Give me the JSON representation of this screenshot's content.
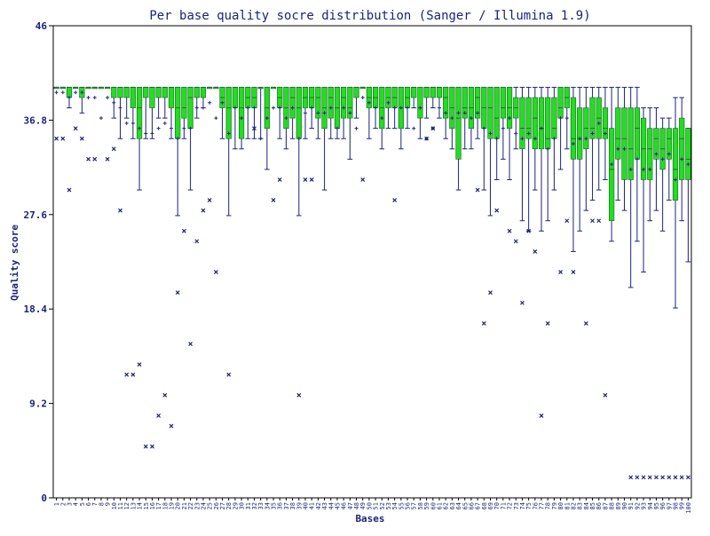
{
  "chart_data": {
    "type": "box",
    "title": "Per base quality socre distribution (Sanger / Illumina 1.9)",
    "xlabel": "Bases",
    "ylabel": "Quality score",
    "ylim": [
      0,
      46
    ],
    "y_ticks": [
      "0",
      "9.2",
      "18.4",
      "27.6",
      "36.8",
      "46"
    ],
    "x_tick_labels": [
      "1",
      "2",
      "3",
      "4",
      "5",
      "6",
      "7",
      "8",
      "9",
      "10",
      "11",
      "12",
      "13",
      "14",
      "15",
      "16",
      "17",
      "18",
      "19",
      "20",
      "21",
      "22",
      "23",
      "24",
      "25",
      "26",
      "27",
      "28",
      "29",
      "30",
      "31",
      "32",
      "33",
      "34",
      "35",
      "36",
      "37",
      "38",
      "39",
      "40",
      "41",
      "42",
      "43",
      "44",
      "45",
      "46",
      "47",
      "48",
      "49",
      "50",
      "51",
      "52",
      "53",
      "54",
      "55",
      "56",
      "57",
      "58",
      "59",
      "60",
      "61",
      "62",
      "63",
      "64",
      "65",
      "66",
      "67",
      "68",
      "69",
      "70",
      "71",
      "72",
      "73",
      "74",
      "75",
      "76",
      "77",
      "78",
      "79",
      "80",
      "81",
      "82",
      "83",
      "84",
      "85",
      "86",
      "87",
      "88",
      "89",
      "90",
      "91",
      "92",
      "93",
      "94",
      "95",
      "96",
      "97",
      "98",
      "99",
      "100"
    ],
    "grid": false,
    "colors": {
      "box_fill": "#22dd22",
      "whisker": "#1a237e",
      "text": "#1a237e",
      "axis": "#000000"
    },
    "boxes": [
      {
        "base": 1,
        "q1": 40,
        "median": 40,
        "q3": 40,
        "low": 40,
        "high": 40,
        "mean": 39.5
      },
      {
        "base": 2,
        "q1": 40,
        "median": 40,
        "q3": 40,
        "low": 40,
        "high": 40,
        "mean": 39.5
      },
      {
        "base": 3,
        "q1": 39,
        "median": 40,
        "q3": 40,
        "low": 38,
        "high": 40,
        "mean": 39
      },
      {
        "base": 4,
        "q1": 40,
        "median": 40,
        "q3": 40,
        "low": 40,
        "high": 40,
        "mean": 39.5
      },
      {
        "base": 5,
        "q1": 39,
        "median": 40,
        "q3": 40,
        "low": 37.5,
        "high": 40,
        "mean": 39.5
      },
      {
        "base": 6,
        "q1": 40,
        "median": 40,
        "q3": 40,
        "low": 40,
        "high": 40,
        "mean": 39
      },
      {
        "base": 7,
        "q1": 40,
        "median": 40,
        "q3": 40,
        "low": 40,
        "high": 40,
        "mean": 39
      },
      {
        "base": 8,
        "q1": 40,
        "median": 40,
        "q3": 40,
        "low": 40,
        "high": 40,
        "mean": 37
      },
      {
        "base": 9,
        "q1": 40,
        "median": 40,
        "q3": 40,
        "low": 40,
        "high": 40,
        "mean": 39
      },
      {
        "base": 10,
        "q1": 39,
        "median": 40,
        "q3": 40,
        "low": 37,
        "high": 40,
        "mean": 38.5
      },
      {
        "base": 11,
        "q1": 39,
        "median": 40,
        "q3": 40,
        "low": 35,
        "high": 40,
        "mean": 38
      },
      {
        "base": 12,
        "q1": 39,
        "median": 40,
        "q3": 40,
        "low": 37,
        "high": 40,
        "mean": 36.5
      },
      {
        "base": 13,
        "q1": 38,
        "median": 40,
        "q3": 40,
        "low": 35,
        "high": 40,
        "mean": 36.5
      },
      {
        "base": 14,
        "q1": 35,
        "median": 38,
        "q3": 40,
        "low": 30,
        "high": 40,
        "mean": 36
      },
      {
        "base": 15,
        "q1": 39,
        "median": 40,
        "q3": 40,
        "low": 35,
        "high": 40,
        "mean": 35.5
      },
      {
        "base": 16,
        "q1": 38,
        "median": 40,
        "q3": 40,
        "low": 35,
        "high": 40,
        "mean": 35.5
      },
      {
        "base": 17,
        "q1": 39,
        "median": 40,
        "q3": 40,
        "low": 37,
        "high": 40,
        "mean": 36
      },
      {
        "base": 18,
        "q1": 39,
        "median": 40,
        "q3": 40,
        "low": 37,
        "high": 40,
        "mean": 36.5
      },
      {
        "base": 19,
        "q1": 38,
        "median": 40,
        "q3": 40,
        "low": 35,
        "high": 40,
        "mean": 36
      },
      {
        "base": 20,
        "q1": 35,
        "median": 38,
        "q3": 40,
        "low": 27.5,
        "high": 40,
        "mean": 35
      },
      {
        "base": 21,
        "q1": 37,
        "median": 38,
        "q3": 40,
        "low": 35,
        "high": 40,
        "mean": 36
      },
      {
        "base": 22,
        "q1": 36,
        "median": 39,
        "q3": 40,
        "low": 30,
        "high": 40,
        "mean": 36
      },
      {
        "base": 23,
        "q1": 39,
        "median": 40,
        "q3": 40,
        "low": 37,
        "high": 40,
        "mean": 38
      },
      {
        "base": 24,
        "q1": 39,
        "median": 40,
        "q3": 40,
        "low": 38,
        "high": 40,
        "mean": 38
      },
      {
        "base": 25,
        "q1": 40,
        "median": 40,
        "q3": 40,
        "low": 40,
        "high": 40,
        "mean": 38.5
      },
      {
        "base": 26,
        "q1": 40,
        "median": 40,
        "q3": 40,
        "low": 40,
        "high": 40,
        "mean": 37
      },
      {
        "base": 27,
        "q1": 38,
        "median": 39,
        "q3": 40,
        "low": 35,
        "high": 40,
        "mean": 38.5
      },
      {
        "base": 28,
        "q1": 35,
        "median": 38,
        "q3": 40,
        "low": 27.5,
        "high": 40,
        "mean": 35.5
      },
      {
        "base": 29,
        "q1": 38,
        "median": 40,
        "q3": 40,
        "low": 34,
        "high": 40,
        "mean": 38
      },
      {
        "base": 30,
        "q1": 35,
        "median": 38,
        "q3": 40,
        "low": 34,
        "high": 40,
        "mean": 37
      },
      {
        "base": 31,
        "q1": 38,
        "median": 39,
        "q3": 40,
        "low": 35,
        "high": 40,
        "mean": 38
      },
      {
        "base": 32,
        "q1": 38,
        "median": 39,
        "q3": 40,
        "low": 35,
        "high": 40,
        "mean": 38
      },
      {
        "base": 33,
        "q1": 40,
        "median": 40,
        "q3": 40,
        "low": 35,
        "high": 40,
        "mean": 35
      },
      {
        "base": 34,
        "q1": 36,
        "median": 38,
        "q3": 40,
        "low": 32,
        "high": 40,
        "mean": 37
      },
      {
        "base": 35,
        "q1": 40,
        "median": 40,
        "q3": 40,
        "low": 40,
        "high": 40,
        "mean": 38
      },
      {
        "base": 36,
        "q1": 38,
        "median": 39,
        "q3": 40,
        "low": 35,
        "high": 40,
        "mean": 38
      },
      {
        "base": 37,
        "q1": 36,
        "median": 38,
        "q3": 40,
        "low": 34,
        "high": 40,
        "mean": 37
      },
      {
        "base": 38,
        "q1": 37,
        "median": 39,
        "q3": 40,
        "low": 35,
        "high": 40,
        "mean": 38
      },
      {
        "base": 39,
        "q1": 35,
        "median": 38,
        "q3": 40,
        "low": 27.5,
        "high": 40,
        "mean": 35
      },
      {
        "base": 40,
        "q1": 38,
        "median": 39,
        "q3": 40,
        "low": 35,
        "high": 40,
        "mean": 37.5
      },
      {
        "base": 41,
        "q1": 38,
        "median": 39,
        "q3": 40,
        "low": 36,
        "high": 40,
        "mean": 38
      },
      {
        "base": 42,
        "q1": 37,
        "median": 39,
        "q3": 40,
        "low": 35,
        "high": 40,
        "mean": 37.5
      },
      {
        "base": 43,
        "q1": 36,
        "median": 38,
        "q3": 40,
        "low": 30,
        "high": 40,
        "mean": 37.5
      },
      {
        "base": 44,
        "q1": 37,
        "median": 39,
        "q3": 40,
        "low": 35,
        "high": 40,
        "mean": 38
      },
      {
        "base": 45,
        "q1": 36,
        "median": 38,
        "q3": 40,
        "low": 35,
        "high": 40,
        "mean": 36
      },
      {
        "base": 46,
        "q1": 37,
        "median": 39,
        "q3": 40,
        "low": 35,
        "high": 40,
        "mean": 38
      },
      {
        "base": 47,
        "q1": 37,
        "median": 38,
        "q3": 40,
        "low": 33,
        "high": 40,
        "mean": 37.5
      },
      {
        "base": 48,
        "q1": 39,
        "median": 40,
        "q3": 40,
        "low": 37,
        "high": 40,
        "mean": 36
      },
      {
        "base": 49,
        "q1": 40,
        "median": 40,
        "q3": 40,
        "low": 40,
        "high": 40,
        "mean": 39
      },
      {
        "base": 50,
        "q1": 38,
        "median": 39,
        "q3": 40,
        "low": 35,
        "high": 40,
        "mean": 38.5
      },
      {
        "base": 51,
        "q1": 38,
        "median": 39,
        "q3": 40,
        "low": 36,
        "high": 40,
        "mean": 38
      },
      {
        "base": 52,
        "q1": 36,
        "median": 38,
        "q3": 40,
        "low": 34,
        "high": 40,
        "mean": 37
      },
      {
        "base": 53,
        "q1": 38,
        "median": 39,
        "q3": 40,
        "low": 36,
        "high": 40,
        "mean": 38.5
      },
      {
        "base": 54,
        "q1": 38,
        "median": 39,
        "q3": 40,
        "low": 36,
        "high": 40,
        "mean": 38
      },
      {
        "base": 55,
        "q1": 36,
        "median": 38,
        "q3": 40,
        "low": 34,
        "high": 40,
        "mean": 38
      },
      {
        "base": 56,
        "q1": 38,
        "median": 39,
        "q3": 40,
        "low": 36,
        "high": 40,
        "mean": 38
      },
      {
        "base": 57,
        "q1": 39,
        "median": 40,
        "q3": 40,
        "low": 38,
        "high": 40,
        "mean": 36
      },
      {
        "base": 58,
        "q1": 37,
        "median": 38,
        "q3": 40,
        "low": 35,
        "high": 40,
        "mean": 38
      },
      {
        "base": 59,
        "q1": 39,
        "median": 40,
        "q3": 40,
        "low": 37,
        "high": 40,
        "mean": 35
      },
      {
        "base": 60,
        "q1": 39,
        "median": 40,
        "q3": 40,
        "low": 38,
        "high": 40,
        "mean": 36
      },
      {
        "base": 61,
        "q1": 39,
        "median": 40,
        "q3": 40,
        "low": 37,
        "high": 40,
        "mean": 38
      },
      {
        "base": 62,
        "q1": 37,
        "median": 39,
        "q3": 40,
        "low": 35,
        "high": 40,
        "mean": 37.5
      },
      {
        "base": 63,
        "q1": 36,
        "median": 38,
        "q3": 40,
        "low": 34,
        "high": 40,
        "mean": 37
      },
      {
        "base": 64,
        "q1": 33,
        "median": 37,
        "q3": 40,
        "low": 30,
        "high": 40,
        "mean": 37.5
      },
      {
        "base": 65,
        "q1": 37,
        "median": 38,
        "q3": 40,
        "low": 34,
        "high": 40,
        "mean": 37.5
      },
      {
        "base": 66,
        "q1": 36,
        "median": 38,
        "q3": 40,
        "low": 34,
        "high": 40,
        "mean": 37
      },
      {
        "base": 67,
        "q1": 37,
        "median": 39,
        "q3": 40,
        "low": 35,
        "high": 40,
        "mean": 37.5
      },
      {
        "base": 68,
        "q1": 36,
        "median": 38,
        "q3": 40,
        "low": 30,
        "high": 40,
        "mean": 36
      },
      {
        "base": 69,
        "q1": 35,
        "median": 38,
        "q3": 40,
        "low": 27.5,
        "high": 40,
        "mean": 35.5
      },
      {
        "base": 70,
        "q1": 35,
        "median": 37,
        "q3": 40,
        "low": 31,
        "high": 40,
        "mean": 35
      },
      {
        "base": 71,
        "q1": 37,
        "median": 38,
        "q3": 40,
        "low": 33,
        "high": 40,
        "mean": 36
      },
      {
        "base": 72,
        "q1": 36,
        "median": 38,
        "q3": 40,
        "low": 31,
        "high": 40,
        "mean": 37
      },
      {
        "base": 73,
        "q1": 37,
        "median": 38,
        "q3": 39,
        "low": 34,
        "high": 40,
        "mean": 35.5
      },
      {
        "base": 74,
        "q1": 34,
        "median": 36,
        "q3": 39,
        "low": 27,
        "high": 40,
        "mean": 35
      },
      {
        "base": 75,
        "q1": 35,
        "median": 36,
        "q3": 39,
        "low": 26,
        "high": 40,
        "mean": 35.5
      },
      {
        "base": 76,
        "q1": 34,
        "median": 37,
        "q3": 39,
        "low": 30,
        "high": 40,
        "mean": 35
      },
      {
        "base": 77,
        "q1": 34,
        "median": 36,
        "q3": 39,
        "low": 26,
        "high": 40,
        "mean": 36
      },
      {
        "base": 78,
        "q1": 34,
        "median": 35,
        "q3": 39,
        "low": 27,
        "high": 40,
        "mean": 34
      },
      {
        "base": 79,
        "q1": 35,
        "median": 36,
        "q3": 39,
        "low": 30,
        "high": 40,
        "mean": 35
      },
      {
        "base": 80,
        "q1": 37,
        "median": 38,
        "q3": 40,
        "low": 32,
        "high": 40,
        "mean": 37
      },
      {
        "base": 81,
        "q1": 38,
        "median": 39,
        "q3": 40,
        "low": 34,
        "high": 40,
        "mean": 37
      },
      {
        "base": 82,
        "q1": 33,
        "median": 35,
        "q3": 39,
        "low": 24,
        "high": 40,
        "mean": 34.5
      },
      {
        "base": 83,
        "q1": 33,
        "median": 35,
        "q3": 38,
        "low": 26,
        "high": 40,
        "mean": 35
      },
      {
        "base": 84,
        "q1": 34,
        "median": 36,
        "q3": 38,
        "low": 28,
        "high": 40,
        "mean": 35
      },
      {
        "base": 85,
        "q1": 35,
        "median": 36,
        "q3": 39,
        "low": 29,
        "high": 40,
        "mean": 35.5
      },
      {
        "base": 86,
        "q1": 35,
        "median": 37,
        "q3": 39,
        "low": 30,
        "high": 40,
        "mean": 36.5
      },
      {
        "base": 87,
        "q1": 35,
        "median": 36,
        "q3": 38,
        "low": 31,
        "high": 40,
        "mean": 35.5
      },
      {
        "base": 88,
        "q1": 27,
        "median": 32,
        "q3": 36,
        "low": 25,
        "high": 40,
        "mean": 32.5
      },
      {
        "base": 89,
        "q1": 33,
        "median": 35,
        "q3": 38,
        "low": 29,
        "high": 40,
        "mean": 34
      },
      {
        "base": 90,
        "q1": 31,
        "median": 35,
        "q3": 38,
        "low": 28,
        "high": 40,
        "mean": 34
      },
      {
        "base": 91,
        "q1": 31,
        "median": 34,
        "q3": 38,
        "low": 20.5,
        "high": 40,
        "mean": 32
      },
      {
        "base": 92,
        "q1": 33,
        "median": 36,
        "q3": 38,
        "low": 25,
        "high": 40,
        "mean": 33
      },
      {
        "base": 93,
        "q1": 31,
        "median": 34,
        "q3": 37,
        "low": 22,
        "high": 38,
        "mean": 32
      },
      {
        "base": 94,
        "q1": 31,
        "median": 34,
        "q3": 36,
        "low": 27,
        "high": 38,
        "mean": 32
      },
      {
        "base": 95,
        "q1": 33,
        "median": 35,
        "q3": 36,
        "low": 28,
        "high": 38,
        "mean": 33.5
      },
      {
        "base": 96,
        "q1": 32,
        "median": 34,
        "q3": 36,
        "low": 26,
        "high": 37,
        "mean": 33
      },
      {
        "base": 97,
        "q1": 33,
        "median": 35,
        "q3": 36,
        "low": 29,
        "high": 37,
        "mean": 33.5
      },
      {
        "base": 98,
        "q1": 29,
        "median": 32,
        "q3": 36,
        "low": 18.5,
        "high": 39,
        "mean": 31
      },
      {
        "base": 99,
        "q1": 31,
        "median": 35,
        "q3": 37,
        "low": 27,
        "high": 39,
        "mean": 33
      },
      {
        "base": 100,
        "q1": 31,
        "median": 33,
        "q3": 36,
        "low": 23,
        "high": 36,
        "mean": 32.5
      }
    ],
    "outliers": [
      [
        1,
        35
      ],
      [
        2,
        35
      ],
      [
        3,
        30
      ],
      [
        4,
        36
      ],
      [
        5,
        35
      ],
      [
        6,
        33
      ],
      [
        7,
        33
      ],
      [
        9,
        33
      ],
      [
        10,
        34
      ],
      [
        11,
        28
      ],
      [
        12,
        12
      ],
      [
        13,
        12
      ],
      [
        14,
        13
      ],
      [
        15,
        5
      ],
      [
        16,
        5
      ],
      [
        17,
        8
      ],
      [
        18,
        10
      ],
      [
        19,
        7
      ],
      [
        20,
        20
      ],
      [
        21,
        26
      ],
      [
        22,
        15
      ],
      [
        23,
        25
      ],
      [
        24,
        28
      ],
      [
        25,
        29
      ],
      [
        26,
        22
      ],
      [
        28,
        12
      ],
      [
        32,
        36
      ],
      [
        35,
        29
      ],
      [
        36,
        31
      ],
      [
        39,
        10
      ],
      [
        40,
        31
      ],
      [
        41,
        31
      ],
      [
        49,
        31
      ],
      [
        54,
        29
      ],
      [
        59,
        35
      ],
      [
        60,
        36
      ],
      [
        67,
        30
      ],
      [
        68,
        17
      ],
      [
        69,
        20
      ],
      [
        70,
        28
      ],
      [
        72,
        26
      ],
      [
        73,
        25
      ],
      [
        74,
        19
      ],
      [
        75,
        26
      ],
      [
        76,
        24
      ],
      [
        77,
        8
      ],
      [
        78,
        17
      ],
      [
        80,
        22
      ],
      [
        81,
        27
      ],
      [
        82,
        22
      ],
      [
        84,
        17
      ],
      [
        85,
        27
      ],
      [
        86,
        27
      ],
      [
        87,
        10
      ],
      [
        91,
        2
      ],
      [
        92,
        2
      ],
      [
        93,
        2
      ],
      [
        94,
        2
      ],
      [
        95,
        2
      ],
      [
        96,
        2
      ],
      [
        97,
        2
      ],
      [
        98,
        2
      ],
      [
        99,
        2
      ],
      [
        100,
        2
      ]
    ]
  }
}
